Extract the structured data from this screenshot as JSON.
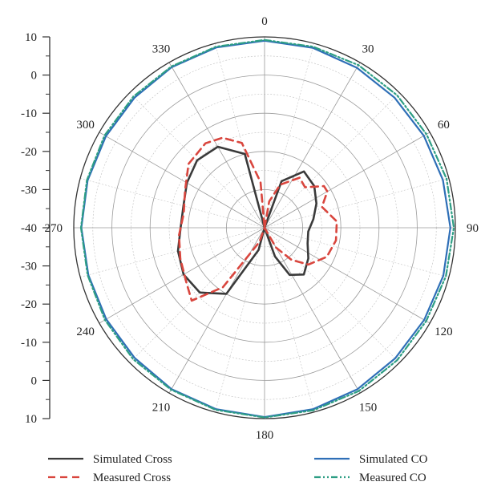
{
  "chart_data": {
    "type": "polar",
    "radial_axis": {
      "ticks": [
        "10",
        "0",
        "-10",
        "-20",
        "-30",
        "-40",
        "-30",
        "-20",
        "-10",
        "0",
        "10"
      ],
      "range_db": [
        -40,
        10
      ],
      "grid_step_db": 10,
      "minor_grid_step_db": 5
    },
    "angular_axis": {
      "ticks": [
        "0",
        "30",
        "60",
        "90",
        "120",
        "150",
        "180",
        "210",
        "240",
        "270",
        "300",
        "330"
      ],
      "direction": "clockwise",
      "zero_at": "top",
      "grid_step_deg": 30,
      "minor_grid_step_deg": 15
    },
    "grid": true,
    "legend_position": "bottom",
    "series": [
      {
        "name": "Simulated Cross",
        "color": "#3a3a3a",
        "style": "solid",
        "points": [
          [
            0,
            -40
          ],
          [
            20,
            -27
          ],
          [
            35,
            -22
          ],
          [
            50,
            -23
          ],
          [
            65,
            -25
          ],
          [
            80,
            -27
          ],
          [
            95,
            -28.5
          ],
          [
            110,
            -28
          ],
          [
            125,
            -26
          ],
          [
            140,
            -24
          ],
          [
            152,
            -26
          ],
          [
            160,
            -32
          ],
          [
            170,
            -40
          ],
          [
            180,
            -40
          ],
          [
            195,
            -34
          ],
          [
            210,
            -20
          ],
          [
            225,
            -16
          ],
          [
            240,
            -15.5
          ],
          [
            255,
            -16.5
          ],
          [
            270,
            -18
          ],
          [
            285,
            -18
          ],
          [
            300,
            -16.5
          ],
          [
            315,
            -15
          ],
          [
            330,
            -15.5
          ],
          [
            345,
            -20
          ],
          [
            360,
            -40
          ]
        ]
      },
      {
        "name": "Measured Cross",
        "color": "#d9463e",
        "style": "dashed",
        "points": [
          [
            0,
            -40
          ],
          [
            10,
            -33
          ],
          [
            20,
            -28
          ],
          [
            35,
            -24
          ],
          [
            45,
            -25
          ],
          [
            55,
            -21
          ],
          [
            60,
            -21
          ],
          [
            70,
            -24
          ],
          [
            85,
            -21
          ],
          [
            100,
            -21
          ],
          [
            115,
            -22
          ],
          [
            130,
            -25
          ],
          [
            140,
            -29
          ],
          [
            150,
            -34
          ],
          [
            165,
            -40
          ],
          [
            180,
            -40
          ],
          [
            200,
            -36
          ],
          [
            215,
            -21
          ],
          [
            225,
            -13
          ],
          [
            235,
            -15
          ],
          [
            250,
            -16.5
          ],
          [
            265,
            -17.5
          ],
          [
            280,
            -18.5
          ],
          [
            295,
            -17
          ],
          [
            310,
            -14
          ],
          [
            325,
            -13
          ],
          [
            335,
            -14
          ],
          [
            345,
            -17
          ],
          [
            355,
            -28
          ],
          [
            360,
            -40
          ]
        ]
      },
      {
        "name": "Simulated CO",
        "color": "#2f6fb7",
        "style": "solid",
        "points": [
          [
            0,
            9
          ],
          [
            15,
            8.8
          ],
          [
            30,
            8.4
          ],
          [
            45,
            8.2
          ],
          [
            60,
            8.2
          ],
          [
            75,
            8.4
          ],
          [
            90,
            8.7
          ],
          [
            105,
            8.5
          ],
          [
            120,
            8.3
          ],
          [
            135,
            8.4
          ],
          [
            150,
            8.8
          ],
          [
            165,
            9.2
          ],
          [
            180,
            9.6
          ],
          [
            195,
            9.2
          ],
          [
            210,
            8.8
          ],
          [
            225,
            8.2
          ],
          [
            240,
            7.9
          ],
          [
            255,
            7.8
          ],
          [
            270,
            8
          ],
          [
            285,
            8
          ],
          [
            300,
            8
          ],
          [
            315,
            8.2
          ],
          [
            330,
            8.6
          ],
          [
            345,
            8.9
          ],
          [
            360,
            9
          ]
        ]
      },
      {
        "name": "Measured CO",
        "color": "#2e9e84",
        "style": "dashdot",
        "points": [
          [
            0,
            9.2
          ],
          [
            15,
            9.1
          ],
          [
            30,
            9.2
          ],
          [
            45,
            9.1
          ],
          [
            60,
            9
          ],
          [
            75,
            9.4
          ],
          [
            90,
            9.6
          ],
          [
            105,
            9.2
          ],
          [
            120,
            8.9
          ],
          [
            135,
            9.1
          ],
          [
            150,
            9.4
          ],
          [
            165,
            9.5
          ],
          [
            180,
            9.7
          ],
          [
            195,
            9.4
          ],
          [
            210,
            9
          ],
          [
            225,
            8.7
          ],
          [
            240,
            8.3
          ],
          [
            255,
            8
          ],
          [
            270,
            8.1
          ],
          [
            285,
            8.2
          ],
          [
            300,
            8.4
          ],
          [
            315,
            8.6
          ],
          [
            330,
            8.8
          ],
          [
            345,
            9.1
          ],
          [
            360,
            9.2
          ]
        ]
      }
    ]
  }
}
